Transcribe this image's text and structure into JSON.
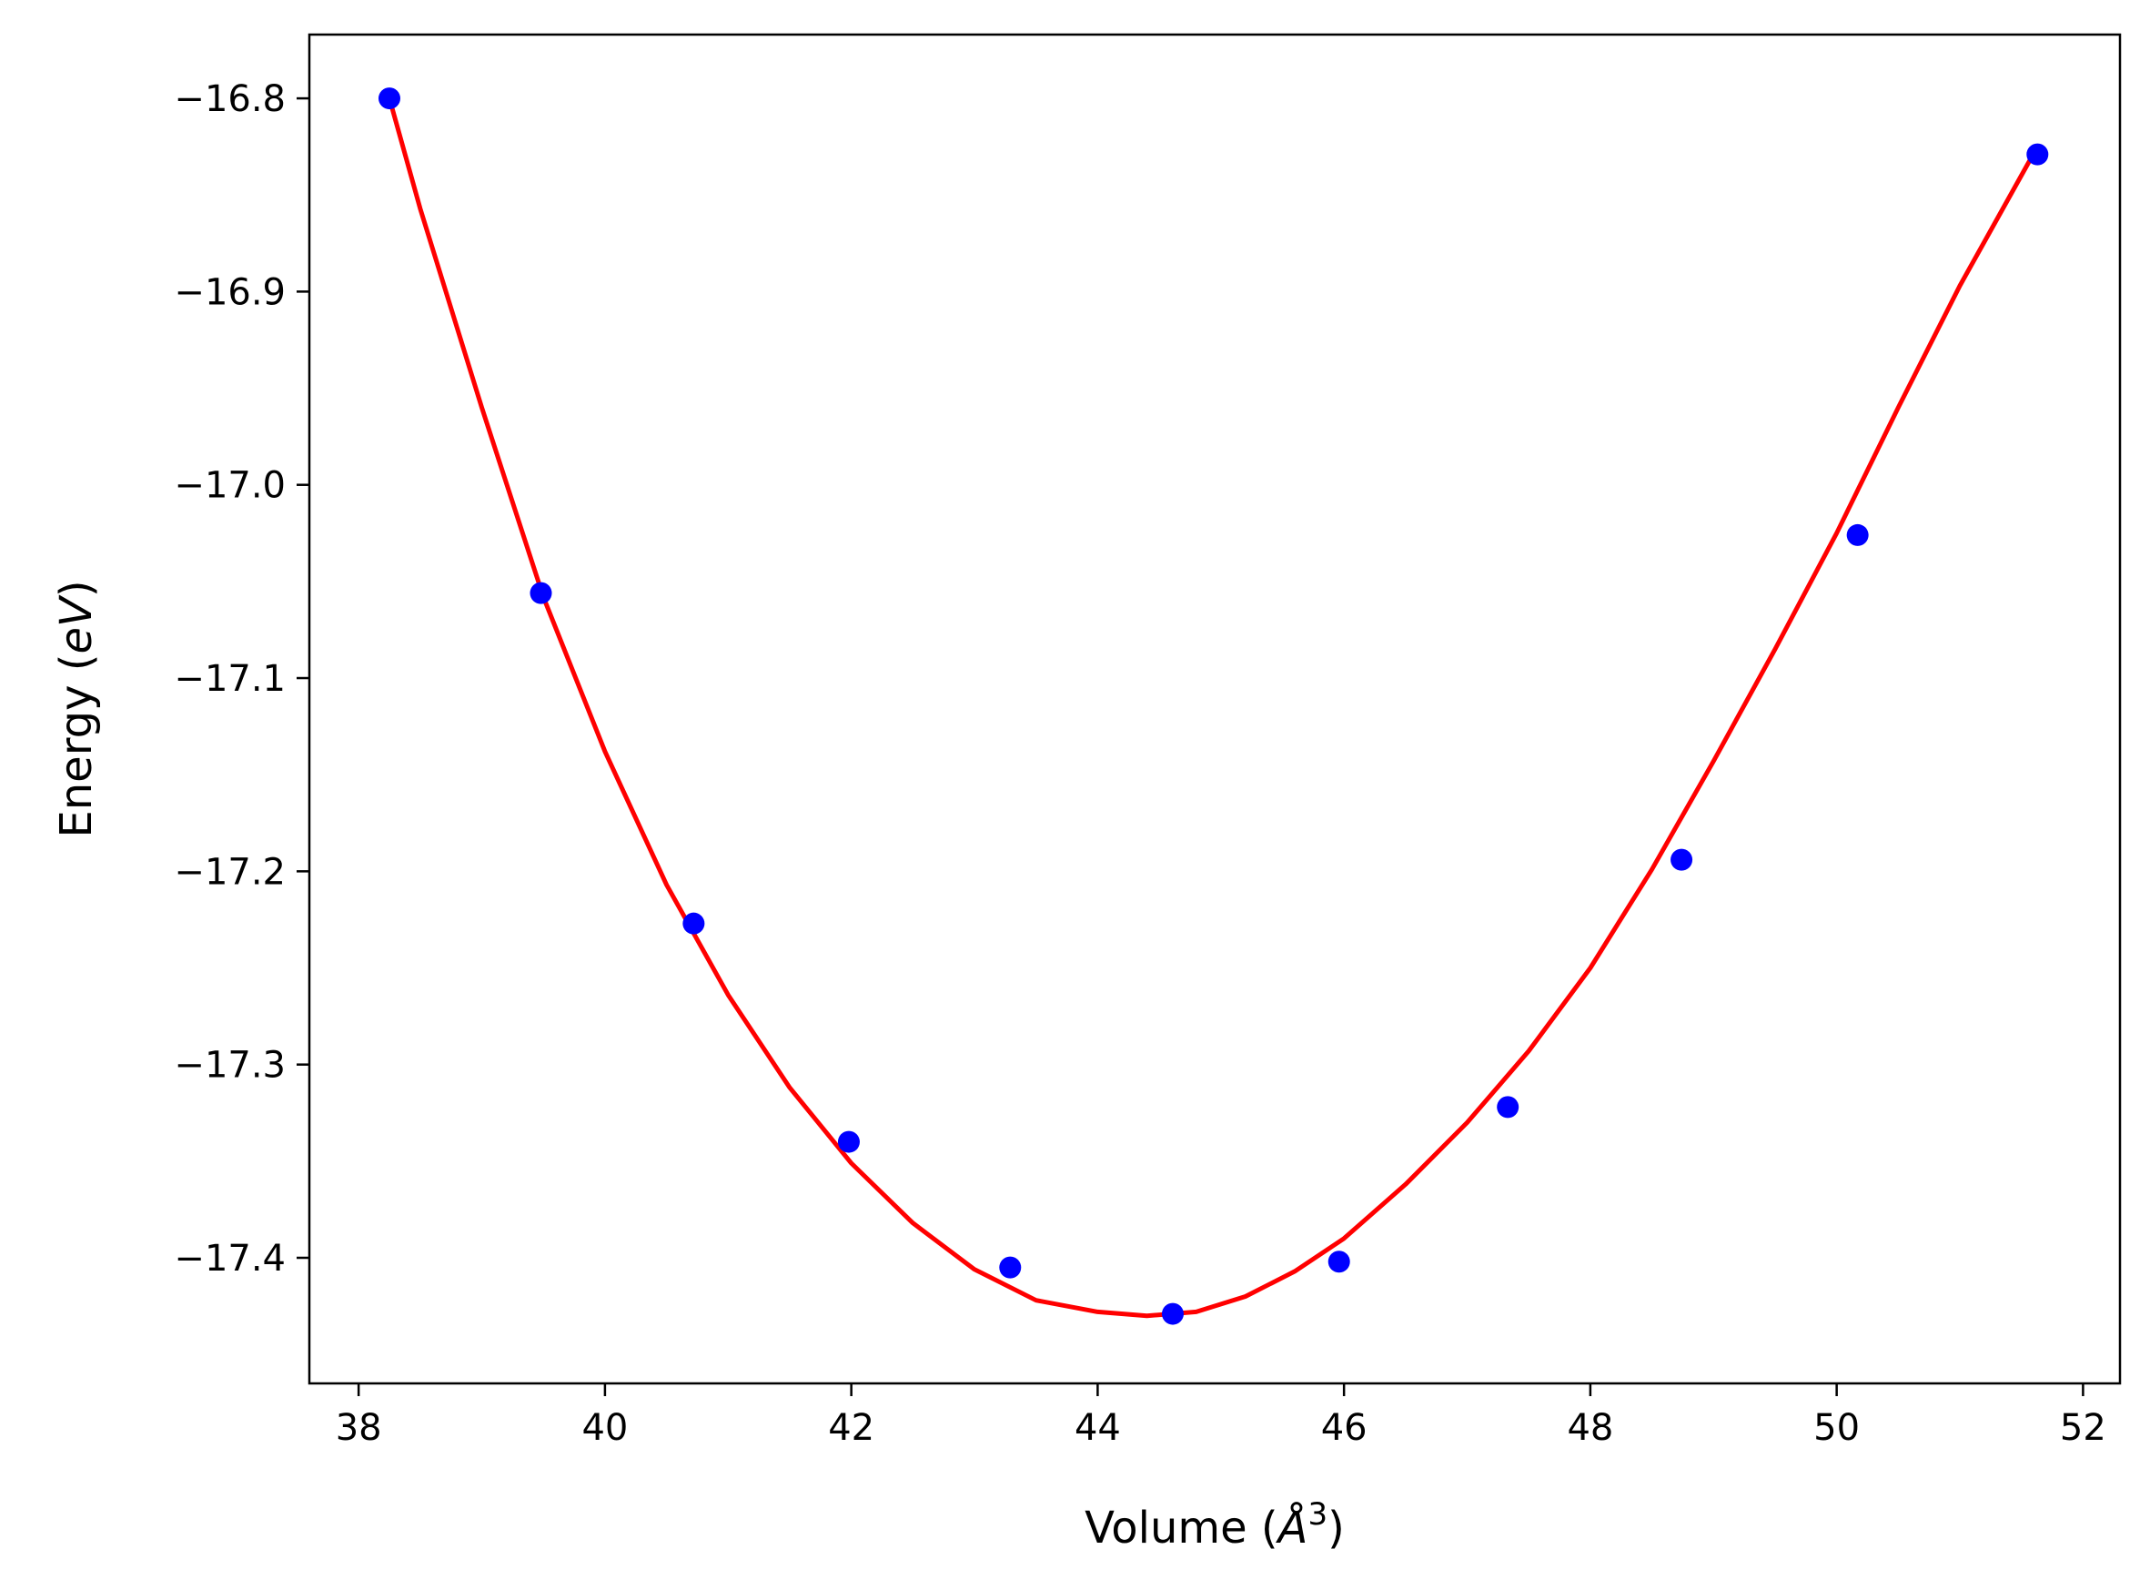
{
  "chart_data": {
    "type": "scatter",
    "title": "",
    "xlabel": {
      "prefix": "Volume (",
      "symbol": "Å",
      "sup": "3",
      "suffix": ")"
    },
    "ylabel": {
      "prefix": "Energy (",
      "symbol": "eV",
      "suffix": ")"
    },
    "xlim": [
      37.6,
      52.3
    ],
    "ylim": [
      -17.465,
      -16.767
    ],
    "xticks": [
      38,
      40,
      42,
      44,
      46,
      48,
      50,
      52
    ],
    "xtick_labels": [
      "38",
      "40",
      "42",
      "44",
      "46",
      "48",
      "50",
      "52"
    ],
    "yticks": [
      -16.8,
      -16.9,
      -17.0,
      -17.1,
      -17.2,
      -17.3,
      -17.4
    ],
    "ytick_labels": [
      "−16.8",
      "−16.9",
      "−17.0",
      "−17.1",
      "−17.2",
      "−17.3",
      "−17.4"
    ],
    "grid": false,
    "series": [
      {
        "kind": "points",
        "color": "#0000ff",
        "x": [
          38.25,
          39.48,
          40.72,
          41.98,
          43.29,
          44.61,
          45.96,
          47.33,
          48.74,
          50.17,
          51.63
        ],
        "y": [
          -16.8,
          -17.056,
          -17.227,
          -17.34,
          -17.405,
          -17.429,
          -17.402,
          -17.322,
          -17.194,
          -17.026,
          -16.829
        ]
      },
      {
        "kind": "fit-line",
        "color": "#ff0000",
        "x": [
          38.25,
          38.5,
          39.0,
          39.5,
          40.0,
          40.5,
          41.0,
          41.5,
          42.0,
          42.5,
          43.0,
          43.5,
          44.0,
          44.4,
          44.8,
          45.2,
          45.6,
          46.0,
          46.5,
          47.0,
          47.5,
          48.0,
          48.5,
          49.0,
          49.5,
          50.0,
          50.5,
          51.0,
          51.63
        ],
        "y": [
          -16.8,
          -16.857,
          -16.96,
          -17.058,
          -17.138,
          -17.207,
          -17.264,
          -17.312,
          -17.351,
          -17.382,
          -17.406,
          -17.422,
          -17.428,
          -17.43,
          -17.428,
          -17.42,
          -17.407,
          -17.39,
          -17.362,
          -17.33,
          -17.293,
          -17.25,
          -17.199,
          -17.143,
          -17.085,
          -17.025,
          -16.96,
          -16.897,
          -16.825
        ]
      }
    ]
  }
}
